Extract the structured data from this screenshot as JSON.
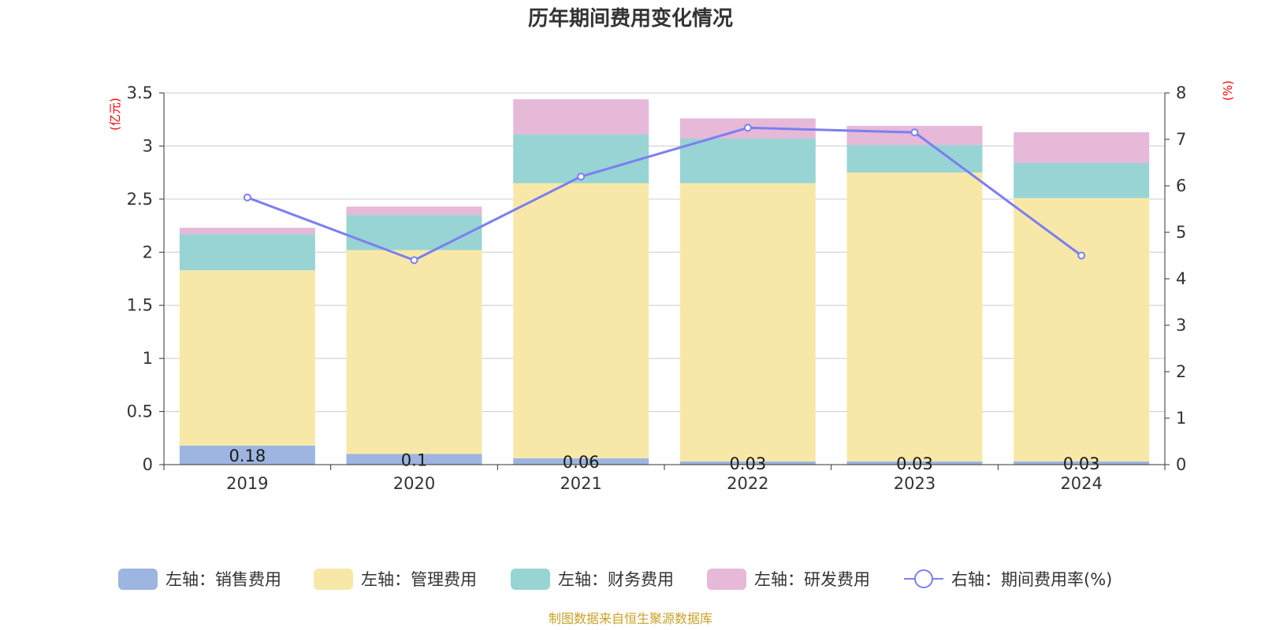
{
  "chart_data": {
    "type": "bar",
    "title": "历年期间费用变化情况",
    "left_unit": "(亿元)",
    "right_unit": "(%)",
    "categories": [
      "2019",
      "2020",
      "2021",
      "2022",
      "2023",
      "2024"
    ],
    "left_axis": {
      "min": 0,
      "max": 3.5,
      "ticks": [
        "0",
        "0.5",
        "1",
        "1.5",
        "2",
        "2.5",
        "3",
        "3.5"
      ]
    },
    "right_axis": {
      "min": 0,
      "max": 8,
      "ticks": [
        "0",
        "1",
        "2",
        "3",
        "4",
        "5",
        "6",
        "7",
        "8"
      ]
    },
    "grid": true,
    "legend_position": "bottom",
    "series": [
      {
        "name": "左轴：销售费用",
        "axis": "left",
        "stack": true,
        "color": "#9db5e0",
        "values": [
          0.18,
          0.1,
          0.06,
          0.03,
          0.03,
          0.03
        ],
        "labels": [
          "0.18",
          "0.1",
          "0.06",
          "0.03",
          "0.03",
          "0.03"
        ]
      },
      {
        "name": "左轴：管理费用",
        "axis": "left",
        "stack": true,
        "color": "#f8e8a8",
        "values": [
          1.65,
          1.92,
          2.59,
          2.62,
          2.72,
          2.48
        ]
      },
      {
        "name": "左轴：财务费用",
        "axis": "left",
        "stack": true,
        "color": "#98d4d4",
        "values": [
          0.34,
          0.33,
          0.46,
          0.42,
          0.26,
          0.33
        ]
      },
      {
        "name": "左轴：研发费用",
        "axis": "left",
        "stack": true,
        "color": "#e6b9d9",
        "values": [
          0.06,
          0.08,
          0.33,
          0.19,
          0.18,
          0.29
        ]
      },
      {
        "name": "右轴：期间费用率(%)",
        "axis": "right",
        "type": "line",
        "color": "#7b7ff0",
        "values": [
          5.75,
          4.4,
          6.2,
          7.25,
          7.15,
          4.5
        ]
      }
    ]
  },
  "source_note": "制图数据来自恒生聚源数据库"
}
